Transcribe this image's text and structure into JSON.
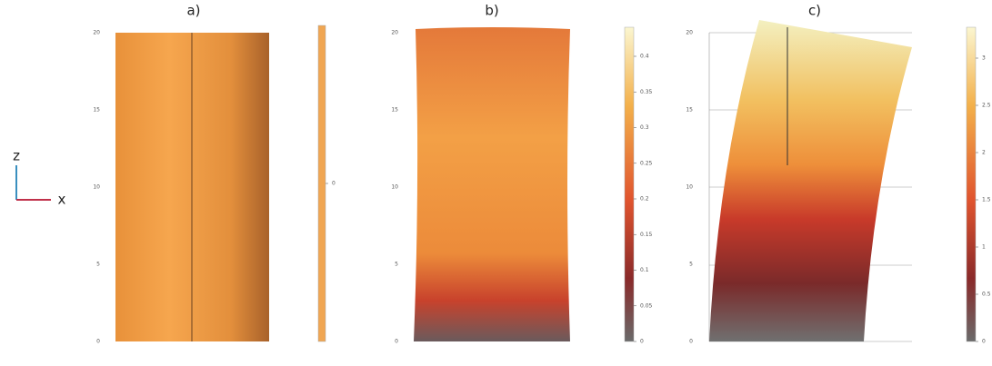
{
  "axis_triad": {
    "z": "z",
    "x": "x"
  },
  "panels": [
    {
      "label": "a)",
      "z_ticks": [
        "0",
        "5",
        "10",
        "15",
        "20"
      ],
      "colorbar_ticks": [
        "0"
      ]
    },
    {
      "label": "b)",
      "z_ticks": [
        "0",
        "5",
        "10",
        "15",
        "20"
      ],
      "colorbar_ticks": [
        "0",
        "0.05",
        "0.1",
        "0.15",
        "0.2",
        "0.25",
        "0.3",
        "0.35",
        "0.4"
      ]
    },
    {
      "label": "c)",
      "z_ticks": [
        "0",
        "5",
        "10",
        "15",
        "20"
      ],
      "colorbar_ticks": [
        "0",
        "0.5",
        "1",
        "1.5",
        "2",
        "2.5",
        "3"
      ]
    }
  ]
}
